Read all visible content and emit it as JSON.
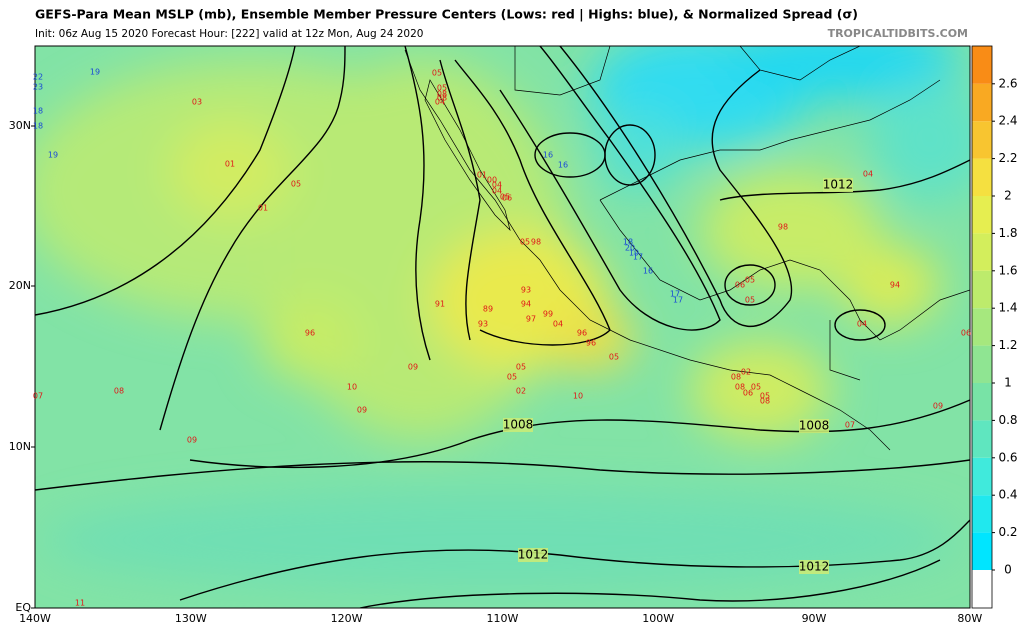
{
  "header": {
    "title": "GEFS-Para Mean MSLP (mb), Ensemble Member Pressure Centers (Lows: red | Highs: blue), & Normalized Spread (σ)",
    "subtitle": "Init: 06z Aug 15 2020   Forecast Hour: [222]   valid at 12z Mon, Aug 24 2020",
    "source": "TROPICALTIDBITS.COM"
  },
  "map": {
    "lat_labels": [
      "30N",
      "20N",
      "10N",
      "EQ"
    ],
    "lon_labels": [
      "140W",
      "130W",
      "120W",
      "110W",
      "100W",
      "90W",
      "80W"
    ],
    "contour_labels": [
      "1012",
      "1008",
      "1008",
      "1012",
      "1012"
    ],
    "highs": [
      "22",
      "23",
      "19",
      "18",
      "18",
      "19",
      "16",
      "16",
      "18",
      "20",
      "19",
      "17",
      "16",
      "17",
      "17"
    ],
    "lows": [
      "05",
      "05",
      "08",
      "08",
      "04",
      "03",
      "01",
      "05",
      "01",
      "01",
      "00",
      "04",
      "04",
      "05",
      "06",
      "05",
      "98",
      "93",
      "94",
      "99",
      "97",
      "04",
      "89",
      "93",
      "91",
      "96",
      "96",
      "96",
      "05",
      "05",
      "05",
      "02",
      "10",
      "09",
      "10",
      "09",
      "08",
      "07",
      "09",
      "11",
      "98",
      "04",
      "94",
      "05",
      "05",
      "06",
      "04",
      "02",
      "08",
      "08",
      "05",
      "06",
      "05",
      "08",
      "07",
      "09",
      "06"
    ]
  },
  "colorbar": {
    "ticks": [
      0,
      0.2,
      0.4,
      0.6,
      0.8,
      1,
      1.2,
      1.4,
      1.6,
      1.8,
      2,
      2.2,
      2.4,
      2.6
    ],
    "colors": [
      "#ffffff",
      "#00e5ff",
      "#20e8ee",
      "#40eadc",
      "#5fe6bf",
      "#78e3a6",
      "#8fe592",
      "#a6e87e",
      "#bdeb6c",
      "#d3ee5c",
      "#e6ee50",
      "#f5e040",
      "#f8c530",
      "#f9a922",
      "#f98c16"
    ]
  }
}
